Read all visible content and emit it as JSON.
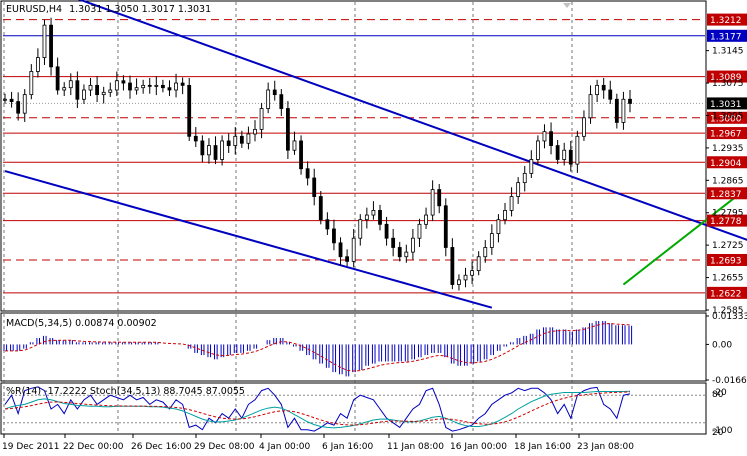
{
  "title": {
    "symbol": "EURUSD,H4",
    "ohlc": "1.3031 1.3050 1.3017 1.3031"
  },
  "colors": {
    "bull_candle": "#000000",
    "level_line": "#c00000",
    "channel_line": "#0000c0",
    "trend_line": "#00aa00",
    "macd_bars": "#0000c0",
    "macd_signal": "#d00000",
    "wpr_line": "#0000c0",
    "stoch_main": "#00a0a0",
    "stoch_signal": "#d00000"
  },
  "chart_data": [
    {
      "type": "candlestick",
      "title": "EURUSD,H4",
      "y_ticks": [
        "1.3145",
        "1.3075",
        "1.3005",
        "1.2935",
        "1.2865",
        "1.2795",
        "1.2725",
        "1.2655",
        "1.2585"
      ],
      "ylim": [
        1.2585,
        1.325
      ],
      "current_price": "1.3031",
      "levels": [
        {
          "value": "1.3212",
          "style": "dashed",
          "color": "#c00000"
        },
        {
          "value": "1.3177",
          "style": "solid",
          "color": "#0000c0"
        },
        {
          "value": "1.3089",
          "style": "solid",
          "color": "#c00000"
        },
        {
          "value": "1.3000",
          "style": "dashed",
          "color": "#c00000"
        },
        {
          "value": "1.2967",
          "style": "solid",
          "color": "#c00000"
        },
        {
          "value": "1.2904",
          "style": "solid",
          "color": "#c00000"
        },
        {
          "value": "1.2837",
          "style": "solid",
          "color": "#c00000"
        },
        {
          "value": "1.2778",
          "style": "solid",
          "color": "#c00000"
        },
        {
          "value": "1.2693",
          "style": "dashed",
          "color": "#c00000"
        },
        {
          "value": "1.2622",
          "style": "solid",
          "color": "#c00000"
        }
      ],
      "closes": [
        1.304,
        1.3035,
        1.301,
        1.305,
        1.31,
        1.313,
        1.32,
        1.311,
        1.306,
        1.3065,
        1.308,
        1.304,
        1.306,
        1.307,
        1.305,
        1.3055,
        1.306,
        1.308,
        1.3075,
        1.306,
        1.3065,
        1.307,
        1.3068,
        1.307,
        1.3065,
        1.306,
        1.3075,
        1.307,
        1.296,
        1.295,
        1.292,
        1.294,
        1.291,
        1.295,
        1.294,
        1.296,
        1.2945,
        1.2965,
        1.2975,
        1.302,
        1.306,
        1.305,
        1.302,
        1.293,
        1.295,
        1.289,
        1.287,
        1.283,
        1.278,
        1.276,
        1.273,
        1.27,
        1.269,
        1.274,
        1.278,
        1.279,
        1.28,
        1.277,
        1.274,
        1.272,
        1.27,
        1.271,
        1.274,
        1.277,
        1.279,
        1.2845,
        1.281,
        1.272,
        1.264,
        1.265,
        1.266,
        1.267,
        1.27,
        1.272,
        1.275,
        1.278,
        1.28,
        1.283,
        1.286,
        1.288,
        1.291,
        1.295,
        1.297,
        1.294,
        1.291,
        1.293,
        1.29,
        1.296,
        1.3,
        1.305,
        1.307,
        1.306,
        1.304,
        1.299,
        1.304,
        1.3031
      ],
      "channel": {
        "upper": [
          [
            1.3303,
            2
          ],
          [
            1.271,
            118
          ]
        ],
        "lower": [
          [
            1.2885,
            0
          ],
          [
            1.259,
            74
          ]
        ]
      },
      "trendline": [
        [
          1.264,
          94
        ],
        [
          1.315,
          140
        ]
      ],
      "x_tick_labels": [
        "19 Dec 2011",
        "22 Dec 00:00",
        "26 Dec 16:00",
        "29 Dec 08:00",
        "4 Jan 00:00",
        "6 Jan 16:00",
        "11 Jan 08:00",
        "16 Jan 00:00",
        "18 Jan 16:00",
        "23 Jan 08:00"
      ]
    },
    {
      "type": "bar",
      "title": "MACD(5,34,5) 0.00874 0.00902",
      "y_ticks": [
        "0.01333",
        "0.00",
        "-0.01669"
      ],
      "ylim": [
        -0.01669,
        0.01333
      ],
      "values": [
        -0.003,
        -0.003,
        -0.003,
        -0.002,
        0.001,
        0.003,
        0.004,
        0.003,
        0.002,
        0.002,
        0.002,
        0.001,
        0.001,
        0.001,
        0.001,
        0.001,
        0.001,
        0.001,
        0.001,
        0.001,
        0.001,
        0.001,
        0.001,
        0.001,
        0.0,
        0.0,
        0.0,
        0.0,
        -0.002,
        -0.004,
        -0.005,
        -0.006,
        -0.007,
        -0.006,
        -0.005,
        -0.004,
        -0.004,
        -0.003,
        -0.002,
        0.0,
        0.002,
        0.003,
        0.003,
        0.001,
        -0.001,
        -0.003,
        -0.005,
        -0.007,
        -0.009,
        -0.011,
        -0.013,
        -0.014,
        -0.015,
        -0.013,
        -0.012,
        -0.01,
        -0.009,
        -0.008,
        -0.008,
        -0.008,
        -0.008,
        -0.008,
        -0.007,
        -0.006,
        -0.005,
        -0.004,
        -0.004,
        -0.006,
        -0.009,
        -0.01,
        -0.01,
        -0.009,
        -0.008,
        -0.007,
        -0.005,
        -0.003,
        -0.001,
        0.001,
        0.003,
        0.004,
        0.005,
        0.007,
        0.008,
        0.008,
        0.007,
        0.007,
        0.006,
        0.007,
        0.008,
        0.01,
        0.011,
        0.011,
        0.01,
        0.009,
        0.009,
        0.00874
      ],
      "signal_value": "0.00902"
    },
    {
      "type": "line",
      "title": "%R(14) -17.2222 Stoch(34,5,13) 88.7045 87.0055",
      "y_ticks": [
        "-20",
        "-100",
        "80",
        "20"
      ],
      "series": [
        {
          "name": "%R(14)",
          "values": [
            -40,
            -20,
            -60,
            -10,
            -5,
            -2,
            -10,
            -50,
            -40,
            -60,
            -30,
            -50,
            -30,
            -20,
            -40,
            -30,
            -20,
            -25,
            -30,
            -20,
            -30,
            -25,
            -40,
            -30,
            -35,
            -50,
            -30,
            -40,
            -90,
            -85,
            -95,
            -70,
            -80,
            -60,
            -70,
            -50,
            -70,
            -40,
            -30,
            -10,
            -5,
            -20,
            -40,
            -90,
            -70,
            -95,
            -95,
            -98,
            -90,
            -80,
            -85,
            -60,
            -70,
            -30,
            -20,
            -25,
            -30,
            -50,
            -70,
            -80,
            -90,
            -70,
            -50,
            -40,
            -10,
            -5,
            -40,
            -90,
            -98,
            -95,
            -90,
            -85,
            -70,
            -60,
            -40,
            -30,
            -20,
            -15,
            -5,
            -10,
            -5,
            -5,
            -15,
            -30,
            -60,
            -40,
            -70,
            -20,
            -10,
            -5,
            -3,
            -40,
            -50,
            -70,
            -20,
            -17.2222
          ]
        },
        {
          "name": "Stoch(34,5,13)",
          "values": [
            50,
            55,
            58,
            60,
            65,
            70,
            72,
            70,
            66,
            62,
            60,
            58,
            57,
            56,
            56,
            55,
            55,
            56,
            56,
            56,
            56,
            56,
            55,
            55,
            54,
            52,
            50,
            46,
            40,
            34,
            28,
            24,
            22,
            22,
            24,
            26,
            30,
            36,
            42,
            48,
            52,
            54,
            52,
            46,
            38,
            30,
            22,
            16,
            12,
            10,
            9,
            10,
            12,
            14,
            18,
            22,
            26,
            28,
            28,
            26,
            24,
            22,
            22,
            24,
            28,
            32,
            34,
            30,
            24,
            18,
            14,
            12,
            12,
            14,
            18,
            24,
            32,
            40,
            50,
            58,
            66,
            72,
            78,
            82,
            84,
            86,
            86,
            86,
            86,
            87,
            88,
            88,
            88,
            88,
            88,
            88.7045
          ]
        }
      ]
    }
  ]
}
